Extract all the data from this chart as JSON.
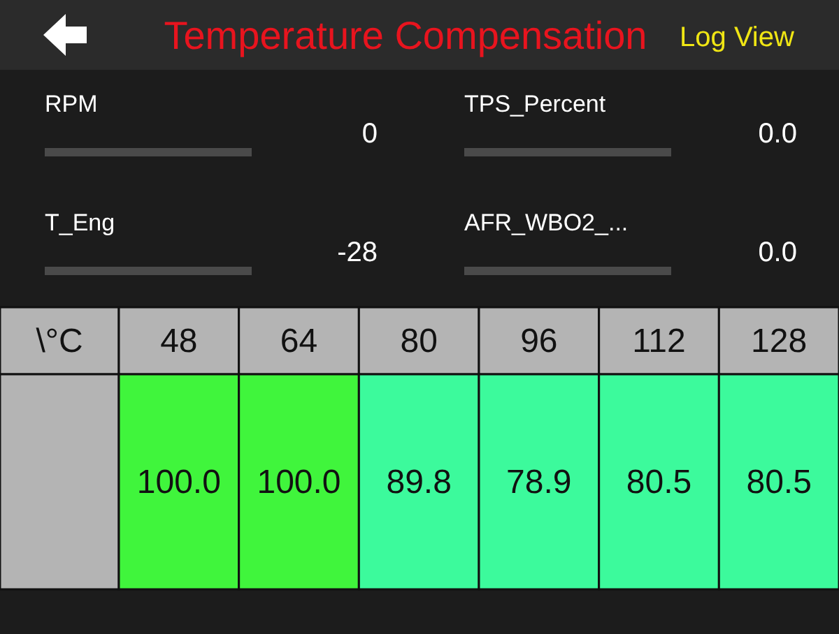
{
  "chart_data": [
    {
      "type": "other",
      "title": "Temperature Compensation",
      "annotations": [
        "Log View",
        "RPM",
        "0",
        "TPS_Percent",
        "0.0",
        "T_Eng",
        "-28",
        "AFR_WBO2_...",
        "0.0"
      ]
    },
    {
      "type": "heatmap",
      "xlabel": "\\°C",
      "categories": [
        "48",
        "64",
        "80",
        "96",
        "112",
        "128"
      ],
      "y_categories": [
        null
      ],
      "cells": [
        [
          100.0,
          100.0,
          89.8,
          78.9,
          80.5,
          80.5
        ]
      ],
      "cell_labels": [
        [
          "100.0",
          "100.0",
          "89.8",
          "78.9",
          "80.5",
          "80.5"
        ]
      ]
    }
  ]
}
